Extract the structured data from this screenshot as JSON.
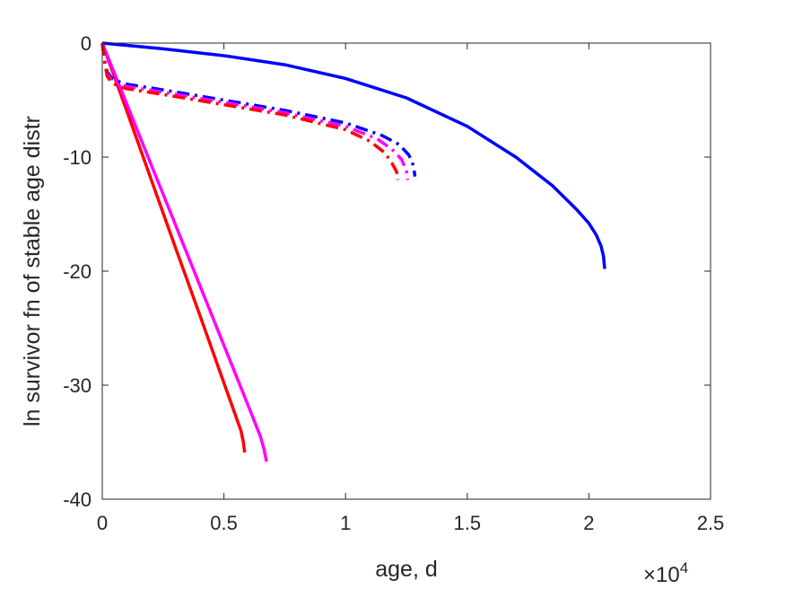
{
  "chart_data": {
    "type": "line",
    "xlabel": "age, d",
    "ylabel": "ln survivor fn of stable age distr",
    "x_exponent_label": "×10",
    "x_exponent_power": "4",
    "x_multiplier": 10000,
    "xlim": [
      0,
      25000
    ],
    "ylim": [
      -40,
      0
    ],
    "xticks": [
      0,
      5000,
      10000,
      15000,
      20000,
      25000
    ],
    "xtick_labels": [
      "0",
      "0.5",
      "1",
      "1.5",
      "2",
      "2.5"
    ],
    "yticks": [
      0,
      -10,
      -20,
      -30,
      -40
    ],
    "ytick_labels": [
      "0",
      "-10",
      "-20",
      "-30",
      "-40"
    ],
    "grid": false,
    "series": [
      {
        "color": "#0000ff",
        "style": "solid",
        "x": [
          0,
          1000,
          2500,
          5000,
          7500,
          10000,
          12500,
          15000,
          17000,
          18500,
          19500,
          20000,
          20300,
          20500,
          20600,
          20650
        ],
        "y": [
          0,
          -0.2,
          -0.5,
          -1.1,
          -1.9,
          -3.1,
          -4.8,
          -7.3,
          -10.0,
          -12.5,
          -14.6,
          -15.8,
          -16.8,
          -17.8,
          -18.7,
          -19.8
        ]
      },
      {
        "color": "#ff0000",
        "style": "solid",
        "x": [
          0,
          1000,
          2000,
          3000,
          4000,
          5000,
          5500,
          5700,
          5800,
          5850
        ],
        "y": [
          0,
          -5.9,
          -11.9,
          -17.9,
          -23.8,
          -29.8,
          -32.8,
          -34.0,
          -35.0,
          -35.9
        ]
      },
      {
        "color": "#ff00ff",
        "style": "solid",
        "x": [
          0,
          1000,
          2000,
          3000,
          4000,
          5000,
          6000,
          6500,
          6650,
          6700,
          6750
        ],
        "y": [
          0,
          -5.3,
          -10.6,
          -15.9,
          -21.2,
          -26.5,
          -31.8,
          -34.5,
          -35.6,
          -36.2,
          -36.7
        ]
      },
      {
        "color": "#0000ff",
        "style": "dashdot",
        "x": [
          0,
          100,
          200,
          400,
          700,
          1000,
          2500,
          5000,
          7500,
          10000,
          11500,
          12200,
          12600,
          12800,
          12850
        ],
        "y": [
          0,
          -1.5,
          -2.5,
          -3.1,
          -3.4,
          -3.6,
          -4.1,
          -5.0,
          -5.9,
          -7.0,
          -8.1,
          -8.9,
          -9.8,
          -10.8,
          -11.7
        ]
      },
      {
        "color": "#ff00ff",
        "style": "dashdot",
        "x": [
          0,
          100,
          200,
          400,
          700,
          1000,
          2500,
          5000,
          7500,
          10000,
          11300,
          11900,
          12300,
          12500,
          12550
        ],
        "y": [
          0,
          -1.6,
          -2.7,
          -3.3,
          -3.6,
          -3.8,
          -4.3,
          -5.2,
          -6.1,
          -7.3,
          -8.4,
          -9.3,
          -10.2,
          -11.2,
          -12.0
        ]
      },
      {
        "color": "#ff0000",
        "style": "dashdot",
        "x": [
          0,
          100,
          200,
          400,
          700,
          1000,
          2500,
          5000,
          7500,
          10000,
          11000,
          11600,
          11900,
          12100,
          12150
        ],
        "y": [
          0,
          -1.7,
          -2.9,
          -3.5,
          -3.8,
          -4.0,
          -4.5,
          -5.4,
          -6.3,
          -7.6,
          -8.6,
          -9.6,
          -10.5,
          -11.3,
          -12.0
        ]
      }
    ]
  }
}
